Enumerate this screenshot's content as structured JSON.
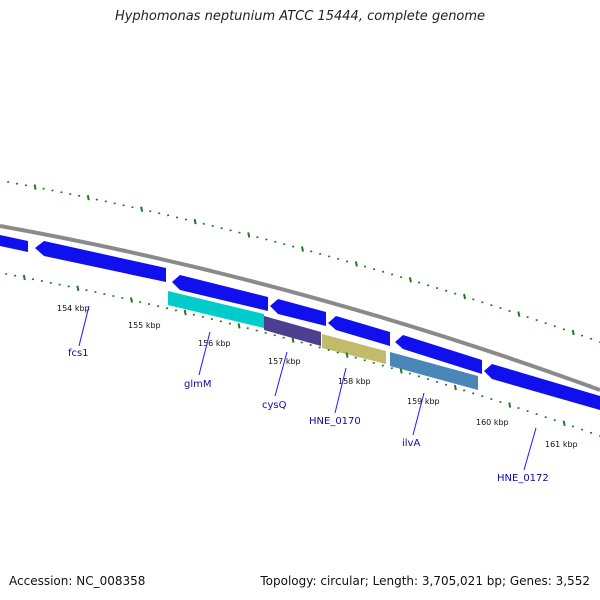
{
  "title": "Hyphomonas neptunium ATCC 15444, complete genome",
  "footer": {
    "accession": "Accession: NC_008358",
    "summary": "Topology: circular; Length: 3,705,021 bp; Genes: 3,552"
  },
  "colors": {
    "backbone": "#888888",
    "cds": "#1010ee",
    "ticks": "#1f7a1f",
    "gene_label": "#0b0baa"
  },
  "scale": {
    "labels": [
      "154 kbp",
      "155 kbp",
      "156 kbp",
      "157 kbp",
      "158 kbp",
      "159 kbp",
      "160 kbp",
      "161 kbp"
    ]
  },
  "gene_labels": [
    "fcs1",
    "glmM",
    "cysQ",
    "HNE_0170",
    "ilvA",
    "HNE_0172"
  ],
  "feature_colors": [
    "#00cccc",
    "#4b3f8e",
    "#c2bb6e",
    "#4a86b8"
  ]
}
